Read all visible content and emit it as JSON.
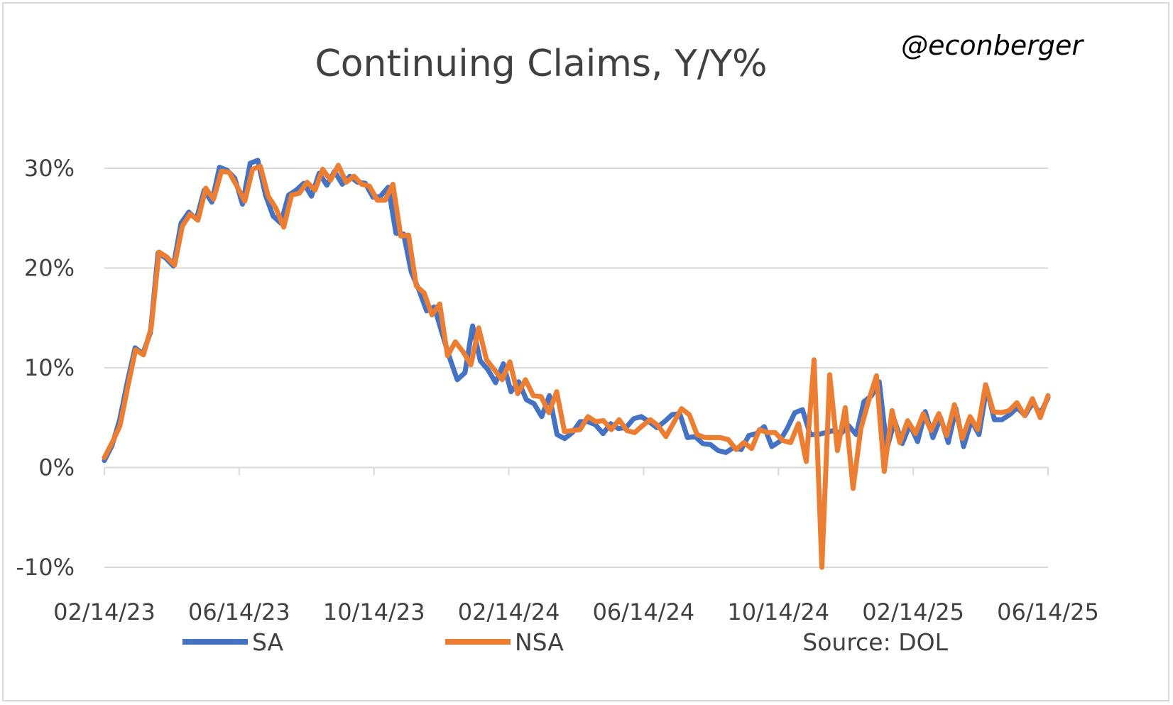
{
  "chart_data": {
    "type": "line",
    "title": "Continuing Claims, Y/Y%",
    "watermark": "@econberger",
    "source": "Source: DOL",
    "x_start": "2023-02-14",
    "x_end": "2025-06-14",
    "x_ticks": [
      "02/14/23",
      "06/14/23",
      "10/14/23",
      "02/14/24",
      "06/14/24",
      "10/14/24",
      "02/14/25",
      "06/14/25"
    ],
    "y_ticks": [
      "30%",
      "20%",
      "10%",
      "0%",
      "-10%"
    ],
    "ylim": [
      -10,
      30
    ],
    "grid": true,
    "legend_position": "bottom-left",
    "series": [
      {
        "name": "SA",
        "color": "#4472c4",
        "values": [
          0.7,
          2.2,
          4.8,
          8.6,
          12.0,
          11.4,
          13.5,
          21.5,
          21.0,
          20.2,
          24.5,
          25.6,
          24.9,
          27.8,
          26.6,
          30.1,
          29.8,
          29.0,
          26.4,
          30.5,
          30.8,
          27.3,
          25.2,
          24.5,
          27.3,
          27.8,
          28.5,
          27.2,
          29.5,
          28.3,
          29.7,
          28.4,
          29.2,
          28.6,
          28.5,
          27.1,
          27.2,
          28.1,
          23.5,
          23.4,
          19.6,
          17.8,
          15.7,
          16.1,
          13.5,
          11.0,
          8.8,
          9.5,
          14.2,
          10.7,
          9.8,
          8.5,
          10.4,
          7.6,
          8.6,
          6.8,
          6.4,
          5.1,
          7.2,
          3.3,
          2.9,
          3.5,
          4.6,
          4.6,
          4.3,
          3.4,
          4.4,
          3.9,
          4.0,
          4.9,
          5.1,
          4.6,
          4.0,
          4.6,
          5.3,
          5.4,
          3.0,
          3.1,
          2.4,
          2.3,
          1.7,
          1.5,
          2.0,
          1.8,
          3.2,
          3.4,
          4.1,
          2.1,
          2.6,
          3.9,
          5.5,
          5.8,
          3.3,
          3.3,
          3.5,
          3.7,
          3.4,
          4.2,
          3.3,
          6.6,
          7.2,
          8.6,
          1.9,
          4.7,
          2.4,
          4.3,
          2.6,
          5.6,
          3.0,
          5.0,
          2.5,
          5.9,
          2.1,
          4.7,
          3.3,
          8.0,
          4.8,
          4.8,
          5.3,
          6.0,
          5.2,
          6.5,
          5.4,
          7.0
        ]
      },
      {
        "name": "NSA",
        "color": "#ed7d31",
        "values": [
          1.0,
          2.5,
          4.2,
          8.1,
          11.8,
          11.3,
          14.0,
          21.6,
          21.1,
          20.3,
          24.2,
          25.4,
          24.8,
          28.0,
          26.9,
          29.7,
          29.6,
          28.2,
          26.7,
          29.9,
          30.2,
          27.2,
          26.0,
          24.1,
          27.3,
          27.5,
          28.6,
          27.8,
          29.9,
          28.8,
          30.3,
          28.6,
          29.2,
          28.4,
          28.2,
          26.8,
          26.8,
          28.4,
          23.2,
          23.3,
          18.2,
          17.5,
          15.3,
          16.4,
          11.2,
          12.6,
          11.6,
          10.3,
          14.0,
          10.8,
          9.8,
          8.8,
          10.6,
          7.4,
          8.8,
          7.2,
          7.1,
          5.5,
          7.6,
          3.6,
          3.7,
          3.8,
          5.1,
          4.6,
          4.7,
          3.8,
          4.8,
          3.7,
          3.5,
          4.2,
          4.8,
          4.2,
          3.1,
          4.5,
          5.9,
          5.3,
          3.3,
          3.0,
          3.0,
          3.0,
          2.8,
          1.8,
          2.5,
          1.9,
          3.8,
          3.5,
          3.5,
          2.7,
          2.5,
          4.4,
          0.6,
          10.8,
          -10.0,
          9.3,
          1.7,
          6.0,
          -2.1,
          3.9,
          6.7,
          9.2,
          -0.4,
          5.7,
          2.5,
          4.7,
          3.4,
          5.4,
          3.7,
          5.4,
          3.2,
          6.3,
          2.9,
          5.1,
          3.8,
          8.3,
          5.6,
          5.5,
          5.7,
          6.5,
          5.2,
          6.9,
          5.0,
          7.2
        ]
      }
    ]
  }
}
